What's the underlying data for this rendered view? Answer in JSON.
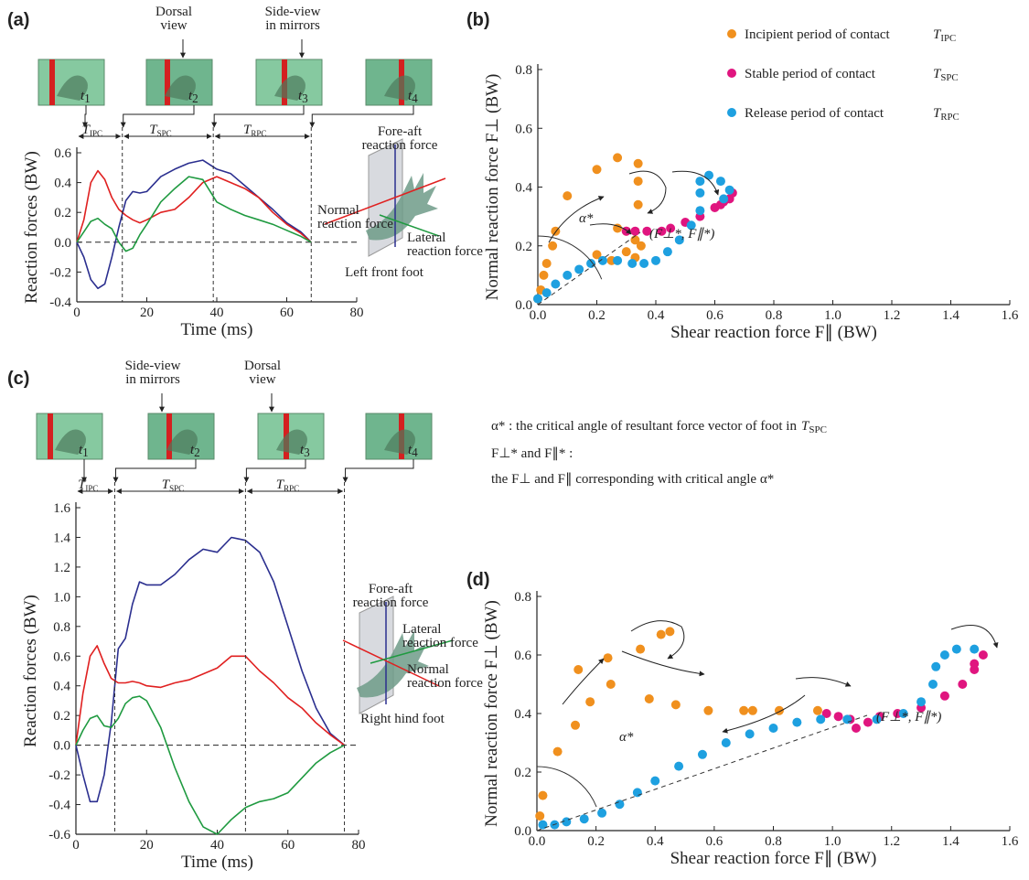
{
  "chart_data": [
    {
      "panel": "(a)",
      "type": "line",
      "xlabel": "Time (ms)",
      "ylabel": "Reaction forces (BW)",
      "xlim": [
        0,
        80
      ],
      "ylim": [
        -0.4,
        0.6
      ],
      "xticks": [
        0,
        20,
        40,
        60,
        80
      ],
      "yticks": [
        -0.4,
        -0.2,
        {
          "value": 0,
          "label": "0.0"
        },
        0.2,
        0.4,
        0.6
      ],
      "x": [
        0,
        2,
        4,
        6,
        8,
        10,
        12,
        14,
        16,
        18,
        20,
        24,
        28,
        32,
        36,
        40,
        44,
        48,
        52,
        56,
        60,
        64,
        67
      ],
      "series": [
        {
          "name": [
            "Fore-aft",
            "reaction force"
          ],
          "color": "#2b2f8f",
          "values": [
            0,
            -0.1,
            -0.25,
            -0.31,
            -0.28,
            -0.1,
            0.1,
            0.28,
            0.34,
            0.33,
            0.34,
            0.44,
            0.49,
            0.53,
            0.55,
            0.49,
            0.46,
            0.38,
            0.3,
            0.22,
            0.13,
            0.07,
            0
          ]
        },
        {
          "name": [
            "Normal",
            "reaction force"
          ],
          "color": "#e02020",
          "values": [
            0,
            0.15,
            0.4,
            0.48,
            0.42,
            0.3,
            0.22,
            0.18,
            0.15,
            0.13,
            0.15,
            0.2,
            0.22,
            0.3,
            0.4,
            0.44,
            0.4,
            0.36,
            0.3,
            0.2,
            0.12,
            0.06,
            0
          ]
        },
        {
          "name": [
            "Lateral",
            "reaction force"
          ],
          "color": "#1f9a40",
          "values": [
            0,
            0.07,
            0.14,
            0.16,
            0.12,
            0.09,
            0,
            -0.06,
            -0.04,
            0.05,
            0.12,
            0.27,
            0.36,
            0.44,
            0.42,
            0.27,
            0.22,
            0.18,
            0.15,
            0.12,
            0.08,
            0.04,
            0
          ]
        }
      ],
      "phase_boundaries": [
        13,
        39,
        67
      ],
      "phases": [
        {
          "symbol": "T",
          "subscript": "IPC"
        },
        {
          "symbol": "T",
          "subscript": "SPC"
        },
        {
          "symbol": "T",
          "subscript": "RPC"
        }
      ],
      "frames": [
        {
          "symbol": "t",
          "subscript": "1"
        },
        {
          "symbol": "t",
          "subscript": "2"
        },
        {
          "symbol": "t",
          "subscript": "3"
        },
        {
          "symbol": "t",
          "subscript": "4"
        }
      ],
      "view_labels": [
        [
          "Dorsal",
          "view"
        ],
        [
          "Side-view",
          "in mirrors"
        ]
      ],
      "foot_label": "Left front foot"
    },
    {
      "panel": "(b)",
      "type": "scatter",
      "xlabel": "Shear reaction force F∥ (BW)",
      "ylabel": "Normal reaction force F⊥ (BW)",
      "xlim": [
        0,
        1.6
      ],
      "ylim": [
        0,
        0.8
      ],
      "xticks": [
        {
          "value": 0,
          "label": "0.0"
        },
        0.2,
        0.4,
        0.6,
        0.8,
        {
          "value": 1,
          "label": "1.0"
        },
        1.2,
        1.4,
        1.6
      ],
      "yticks": [
        {
          "value": 0,
          "label": "0.0"
        },
        0.2,
        0.4,
        0.6,
        0.8
      ],
      "series": [
        {
          "name": "Incipient  period of contact",
          "symbol": "T",
          "subscript": "IPC",
          "color": "#f0901e",
          "x": [
            0,
            0.01,
            0.02,
            0.03,
            0.05,
            0.06,
            0.1,
            0.2,
            0.27,
            0.34,
            0.34,
            0.34,
            0.3,
            0.27,
            0.2,
            0.25,
            0.3,
            0.33,
            0.33,
            0.35
          ],
          "y": [
            0.02,
            0.05,
            0.1,
            0.14,
            0.2,
            0.25,
            0.37,
            0.46,
            0.5,
            0.48,
            0.42,
            0.34,
            0.25,
            0.26,
            0.17,
            0.15,
            0.18,
            0.22,
            0.16,
            0.2
          ]
        },
        {
          "name": "Stable period of contact",
          "symbol": "T",
          "subscript": "SPC",
          "color": "#e0157f",
          "x": [
            0.3,
            0.33,
            0.37,
            0.42,
            0.45,
            0.5,
            0.55,
            0.6,
            0.63,
            0.66,
            0.65,
            0.62
          ],
          "y": [
            0.25,
            0.25,
            0.25,
            0.25,
            0.26,
            0.28,
            0.3,
            0.33,
            0.35,
            0.38,
            0.36,
            0.34
          ]
        },
        {
          "name": "Release  period of contact",
          "symbol": "T",
          "subscript": "RPC",
          "color": "#1ea0e0",
          "x": [
            0,
            0.03,
            0.06,
            0.1,
            0.14,
            0.18,
            0.22,
            0.27,
            0.32,
            0.36,
            0.4,
            0.44,
            0.48,
            0.52,
            0.55,
            0.55,
            0.55,
            0.58,
            0.62,
            0.65,
            0.63
          ],
          "y": [
            0.02,
            0.04,
            0.07,
            0.1,
            0.12,
            0.14,
            0.15,
            0.15,
            0.14,
            0.14,
            0.15,
            0.18,
            0.22,
            0.27,
            0.32,
            0.38,
            0.42,
            0.44,
            0.42,
            0.39,
            0.36
          ]
        }
      ],
      "alpha_label": "α*",
      "critical_label": "(F⊥*, F∥*)"
    },
    {
      "panel": "(c)",
      "type": "line",
      "xlabel": "Time (ms)",
      "ylabel": "Reaction forces (BW)",
      "xlim": [
        0,
        80
      ],
      "ylim": [
        -0.6,
        1.6
      ],
      "xticks": [
        0,
        20,
        40,
        60,
        80
      ],
      "yticks": [
        -0.6,
        -0.4,
        -0.2,
        {
          "value": 0,
          "label": "0.0"
        },
        0.2,
        0.4,
        0.6,
        0.8,
        {
          "value": 1,
          "label": "1.0"
        },
        1.2,
        1.4,
        1.6
      ],
      "x": [
        0,
        2,
        4,
        6,
        8,
        10,
        12,
        14,
        16,
        18,
        20,
        24,
        28,
        32,
        36,
        40,
        44,
        48,
        52,
        56,
        60,
        64,
        68,
        72,
        76
      ],
      "series": [
        {
          "name": [
            "Fore-aft",
            "reaction force"
          ],
          "color": "#2b2f8f",
          "values": [
            0,
            -0.2,
            -0.38,
            -0.38,
            -0.2,
            0.15,
            0.65,
            0.72,
            0.95,
            1.1,
            1.08,
            1.08,
            1.15,
            1.25,
            1.32,
            1.3,
            1.4,
            1.38,
            1.3,
            1.1,
            0.8,
            0.5,
            0.25,
            0.08,
            0
          ]
        },
        {
          "name": [
            "Normal",
            "reaction force"
          ],
          "color": "#e02020",
          "values": [
            0,
            0.35,
            0.6,
            0.67,
            0.55,
            0.45,
            0.42,
            0.42,
            0.43,
            0.42,
            0.4,
            0.39,
            0.42,
            0.44,
            0.48,
            0.52,
            0.6,
            0.6,
            0.5,
            0.42,
            0.32,
            0.25,
            0.15,
            0.07,
            0
          ]
        },
        {
          "name": [
            "Lateral",
            "reaction force"
          ],
          "color": "#1f9a40",
          "values": [
            0,
            0.1,
            0.18,
            0.2,
            0.13,
            0.12,
            0.18,
            0.28,
            0.32,
            0.33,
            0.3,
            0.12,
            -0.15,
            -0.38,
            -0.55,
            -0.6,
            -0.5,
            -0.42,
            -0.38,
            -0.36,
            -0.32,
            -0.22,
            -0.12,
            -0.05,
            0
          ]
        }
      ],
      "phase_boundaries": [
        11,
        48,
        76
      ],
      "phases": [
        {
          "symbol": "T",
          "subscript": "IPC"
        },
        {
          "symbol": "T",
          "subscript": "SPC"
        },
        {
          "symbol": "T",
          "subscript": "RPC"
        }
      ],
      "frames": [
        {
          "symbol": "t",
          "subscript": "1"
        },
        {
          "symbol": "t",
          "subscript": "2"
        },
        {
          "symbol": "t",
          "subscript": "3"
        },
        {
          "symbol": "t",
          "subscript": "4"
        }
      ],
      "view_labels": [
        [
          "Side-view",
          "in mirrors"
        ],
        [
          "Dorsal",
          "view"
        ]
      ],
      "foot_label": "Right hind foot"
    },
    {
      "panel": "(d)",
      "type": "scatter",
      "xlabel": "Shear reaction force F∥ (BW)",
      "ylabel": "Normal reaction force F⊥ (BW)",
      "xlim": [
        0,
        1.6
      ],
      "ylim": [
        0,
        0.8
      ],
      "xticks": [
        {
          "value": 0,
          "label": "0.0"
        },
        0.2,
        0.4,
        0.6,
        0.8,
        {
          "value": 1,
          "label": "1.0"
        },
        1.2,
        1.4,
        1.6
      ],
      "yticks": [
        {
          "value": 0,
          "label": "0.0"
        },
        0.2,
        0.4,
        0.6,
        0.8
      ],
      "series": [
        {
          "color": "#f0901e",
          "x": [
            0.01,
            0.02,
            0.07,
            0.13,
            0.14,
            0.18,
            0.24,
            0.25,
            0.35,
            0.38,
            0.42,
            0.45,
            0.47,
            0.58,
            0.7,
            0.73,
            0.82,
            0.95
          ],
          "y": [
            0.05,
            0.12,
            0.27,
            0.36,
            0.55,
            0.44,
            0.59,
            0.5,
            0.62,
            0.45,
            0.67,
            0.68,
            0.43,
            0.41,
            0.41,
            0.41,
            0.41,
            0.41
          ]
        },
        {
          "color": "#e0157f",
          "x": [
            0.98,
            1.02,
            1.06,
            1.08,
            1.12,
            1.16,
            1.22,
            1.3,
            1.38,
            1.44,
            1.48,
            1.51,
            1.48
          ],
          "y": [
            0.4,
            0.39,
            0.38,
            0.35,
            0.37,
            0.39,
            0.4,
            0.42,
            0.46,
            0.5,
            0.55,
            0.6,
            0.57
          ]
        },
        {
          "color": "#1ea0e0",
          "x": [
            0.02,
            0.06,
            0.1,
            0.16,
            0.22,
            0.28,
            0.34,
            0.4,
            0.48,
            0.56,
            0.64,
            0.72,
            0.8,
            0.88,
            0.96,
            1.05,
            1.15,
            1.24,
            1.3,
            1.34,
            1.35,
            1.38,
            1.42,
            1.48
          ],
          "y": [
            0.02,
            0.02,
            0.03,
            0.04,
            0.06,
            0.09,
            0.13,
            0.17,
            0.22,
            0.26,
            0.3,
            0.33,
            0.35,
            0.37,
            0.38,
            0.38,
            0.38,
            0.4,
            0.44,
            0.5,
            0.56,
            0.6,
            0.62,
            0.62
          ]
        }
      ],
      "alpha_label": "α*",
      "critical_label": "(F⊥*, F∥*)"
    }
  ],
  "notes": {
    "line1": "α* : the critical angle of resultant force vector of foot in",
    "line1_symbol": "T",
    "line1_subscript": "SPC",
    "line2": "F⊥* and F∥* :",
    "line3": "the F⊥ and F∥ corresponding with critical angle α*"
  }
}
